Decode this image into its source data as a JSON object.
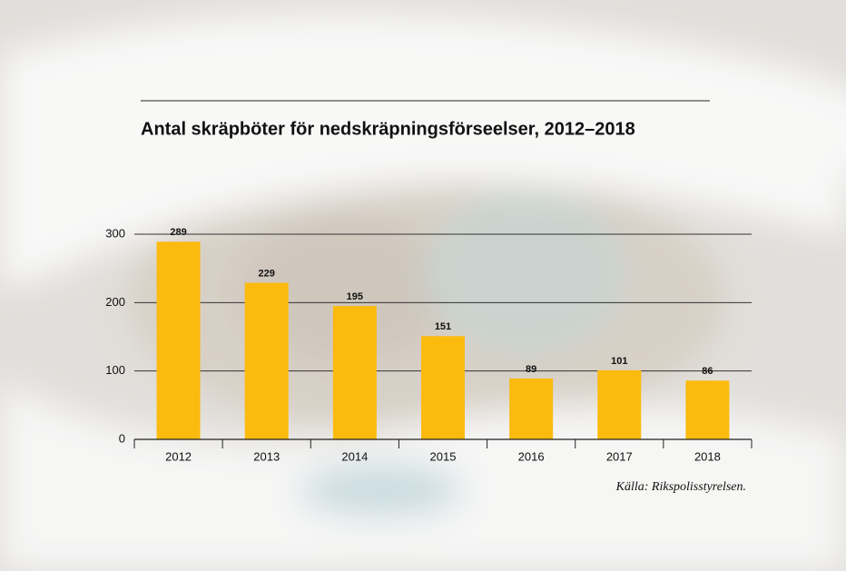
{
  "chart_data": {
    "type": "bar",
    "title": "Antal skräpböter för nedskräpningsförseelser, 2012–2018",
    "categories": [
      "2012",
      "2013",
      "2014",
      "2015",
      "2016",
      "2017",
      "2018"
    ],
    "values": [
      289,
      229,
      195,
      151,
      89,
      101,
      86
    ],
    "color": "#fbba0e",
    "ylim": [
      0,
      300
    ],
    "yticks": [
      0,
      100,
      200,
      300
    ],
    "grid": true,
    "source": "Källa: Rikspolisstyrelsen."
  }
}
